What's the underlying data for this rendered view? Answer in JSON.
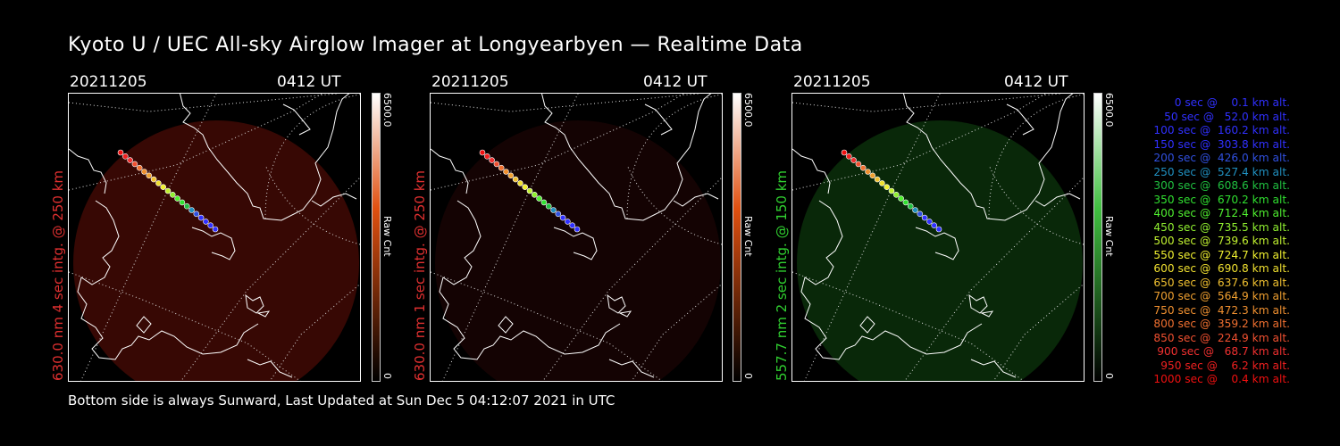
{
  "title": "Kyoto U / UEC All-sky Airglow Imager at Longyearbyen — Realtime Data",
  "panels": [
    {
      "date": "20211205",
      "time": "0412 UT",
      "label": "630.0 nm 4 sec intg. @ 250 km",
      "label_color": "#e03030",
      "cbar_max": "6500.0",
      "cbar_min": "0",
      "cbar_unit": "Raw Cnt",
      "glow_color": "#3a0804",
      "cbar_top": "#ffffff",
      "cbar_mid": "#e05010",
      "cbar_bot": "#000000"
    },
    {
      "date": "20211205",
      "time": "0412 UT",
      "label": "630.0 nm 1 sec intg. @ 250 km",
      "label_color": "#e03030",
      "cbar_max": "6500.0",
      "cbar_min": "0",
      "cbar_unit": "Raw Cnt",
      "glow_color": "#150303",
      "cbar_top": "#ffffff",
      "cbar_mid": "#e05010",
      "cbar_bot": "#000000"
    },
    {
      "date": "20211205",
      "time": "0412 UT",
      "label": "557.7 nm 2 sec intg. @ 150 km",
      "label_color": "#30d030",
      "cbar_max": "6500.0",
      "cbar_min": "0",
      "cbar_unit": "Raw Cnt",
      "glow_color": "#0a2a0a",
      "cbar_top": "#ffffff",
      "cbar_mid": "#40c040",
      "cbar_bot": "#000000"
    }
  ],
  "footer": "Bottom side is always Sunward, Last Updated at Sun Dec  5 04:12:07 2021 in UTC",
  "legend": [
    {
      "text": "0 sec @    0.1 km alt.",
      "color": "#3030ff"
    },
    {
      "text": "50 sec @   52.0 km alt.",
      "color": "#3030ff"
    },
    {
      "text": "100 sec @  160.2 km alt.",
      "color": "#3030ff"
    },
    {
      "text": "150 sec @  303.8 km alt.",
      "color": "#3030ff"
    },
    {
      "text": "200 sec @  426.0 km alt.",
      "color": "#3050e0"
    },
    {
      "text": "250 sec @  527.4 km alt.",
      "color": "#2090c0"
    },
    {
      "text": "300 sec @  608.6 km alt.",
      "color": "#20c040"
    },
    {
      "text": "350 sec @  670.2 km alt.",
      "color": "#30e030"
    },
    {
      "text": "400 sec @  712.4 km alt.",
      "color": "#50f030"
    },
    {
      "text": "450 sec @  735.5 km alt.",
      "color": "#90f030"
    },
    {
      "text": "500 sec @  739.6 km alt.",
      "color": "#c0f030"
    },
    {
      "text": "550 sec @  724.7 km alt.",
      "color": "#f0f030"
    },
    {
      "text": "600 sec @  690.8 km alt.",
      "color": "#f0e030"
    },
    {
      "text": "650 sec @  637.6 km alt.",
      "color": "#f0c030"
    },
    {
      "text": "700 sec @  564.9 km alt.",
      "color": "#f0a030"
    },
    {
      "text": "750 sec @  472.3 km alt.",
      "color": "#f09030"
    },
    {
      "text": "800 sec @  359.2 km alt.",
      "color": "#f07030"
    },
    {
      "text": "850 sec @  224.9 km alt.",
      "color": "#f05030"
    },
    {
      "text": "900 sec @   68.7 km alt.",
      "color": "#f03030"
    },
    {
      "text": "950 sec @    6.2 km alt.",
      "color": "#f02020"
    },
    {
      "text": "1000 sec @    0.4 km alt.",
      "color": "#f01010"
    }
  ]
}
